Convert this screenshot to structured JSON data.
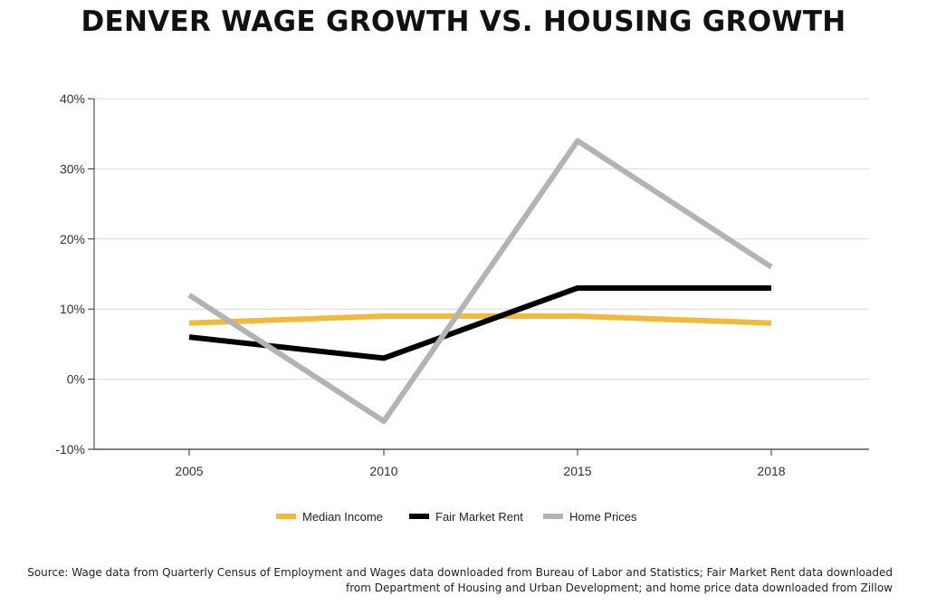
{
  "title": "DENVER WAGE GROWTH VS. HOUSING GROWTH",
  "source": "Source: Wage data from Quarterly Census of Employment and Wages data downloaded from Bureau of Labor and Statistics; Fair Market Rent data downloaded from Department of Housing and Urban Development; and home price data downloaded from Zillow",
  "chart_data": {
    "type": "line",
    "title": "DENVER WAGE GROWTH VS. HOUSING GROWTH",
    "xlabel": "",
    "ylabel": "",
    "categories": [
      "2005",
      "2010",
      "2015",
      "2018"
    ],
    "ylim": [
      -10,
      40
    ],
    "yticks": [
      -10,
      0,
      10,
      20,
      30,
      40
    ],
    "ytick_labels": [
      "-10%",
      "0%",
      "10%",
      "20%",
      "30%",
      "40%"
    ],
    "grid": true,
    "legend_position": "bottom",
    "series": [
      {
        "name": "Median Income",
        "values": [
          8,
          9,
          9,
          8
        ],
        "color": "#f2b93b"
      },
      {
        "name": "Fair Market Rent",
        "values": [
          6,
          3,
          13,
          13
        ],
        "color": "#000000"
      },
      {
        "name": "Home Prices",
        "values": [
          12,
          -6,
          34,
          16
        ],
        "color": "#b3b3b3"
      }
    ]
  }
}
